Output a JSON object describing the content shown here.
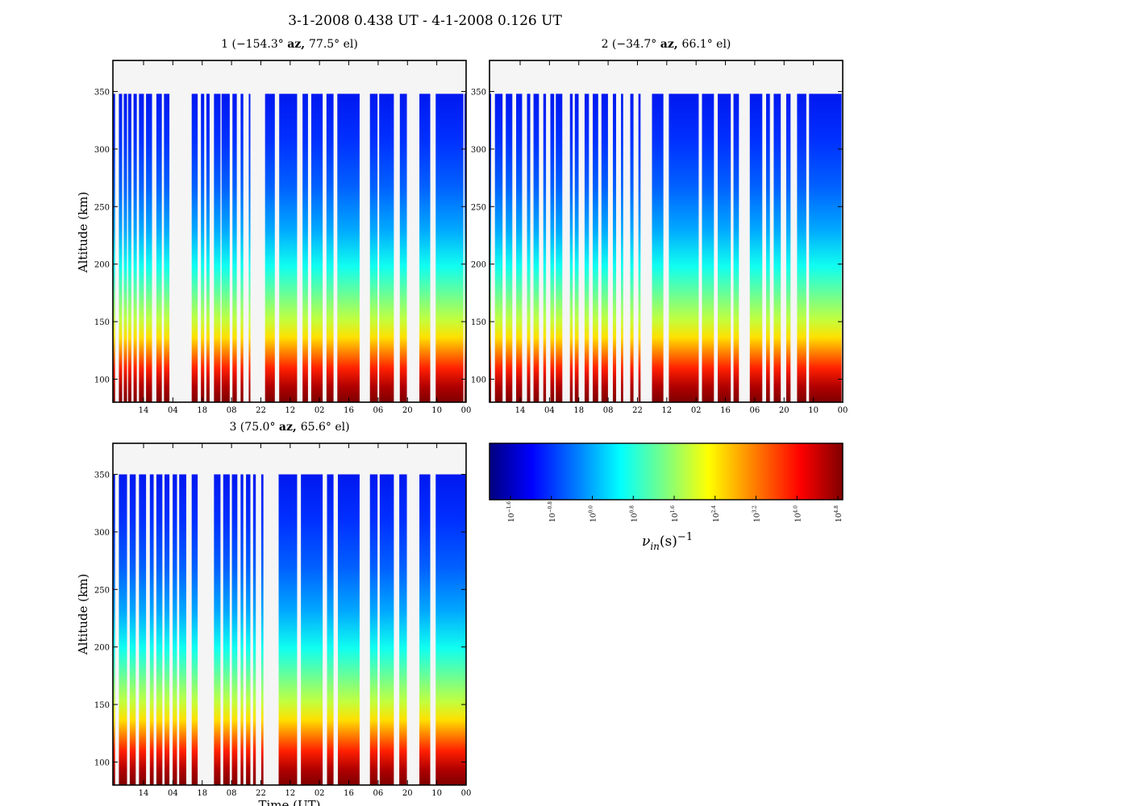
{
  "figure": {
    "suptitle": "3-1-2008 0.438 UT - 4-1-2008 0.126 UT"
  },
  "chart_data": [
    {
      "type": "heatmap",
      "title_prefix": "1 (",
      "title_az": "−154.3°",
      "title_az_unit": "az,",
      "title_el": "77.5°",
      "title_el_unit": "el)",
      "ylabel": "Altitude (km)",
      "xlabel": "",
      "ylim": [
        80,
        377
      ],
      "yticks": [
        100,
        150,
        200,
        250,
        300,
        350
      ],
      "xtick_labels": [
        "14",
        "04",
        "18",
        "08",
        "22",
        "12",
        "02",
        "16",
        "06",
        "20",
        "10",
        "00"
      ],
      "altitude_range_km": [
        80,
        348
      ],
      "data_columns": [
        [
          0.0,
          0.4
        ],
        [
          1.1,
          1.7
        ],
        [
          2.0,
          2.6
        ],
        [
          2.8,
          3.4
        ],
        [
          3.8,
          4.4
        ],
        [
          4.8,
          5.7
        ],
        [
          6.1,
          7.2
        ],
        [
          8.0,
          9.0
        ],
        [
          9.4,
          10.4
        ],
        [
          14.5,
          15.6
        ],
        [
          16.2,
          16.8
        ],
        [
          17.2,
          17.8
        ],
        [
          18.6,
          19.8
        ],
        [
          20.0,
          21.5
        ],
        [
          22.0,
          22.8
        ],
        [
          23.5,
          24.0
        ],
        [
          25.0,
          25.3
        ],
        [
          28.0,
          29.8
        ],
        [
          30.6,
          33.9
        ],
        [
          34.9,
          35.9
        ],
        [
          36.5,
          38.6
        ],
        [
          39.3,
          40.6
        ],
        [
          41.3,
          45.4
        ],
        [
          47.3,
          48.7
        ],
        [
          49.0,
          51.7
        ],
        [
          52.8,
          54.1
        ],
        [
          56.4,
          58.4
        ],
        [
          59.4,
          64.5
        ],
        [
          64.7,
          65.0
        ]
      ]
    },
    {
      "type": "heatmap",
      "title_prefix": "2 (",
      "title_az": "−34.7°",
      "title_az_unit": "az,",
      "title_el": "66.1°",
      "title_el_unit": "el)",
      "ylabel": "",
      "xlabel": "",
      "ylim": [
        80,
        377
      ],
      "yticks": [
        100,
        150,
        200,
        250,
        300,
        350
      ],
      "xtick_labels": [
        "14",
        "04",
        "18",
        "08",
        "22",
        "12",
        "02",
        "16",
        "06",
        "20",
        "10",
        "00"
      ],
      "altitude_range_km": [
        80,
        348
      ],
      "data_columns": [
        [
          0.0,
          0.3
        ],
        [
          1.0,
          2.4
        ],
        [
          3.0,
          4.2
        ],
        [
          4.9,
          6.0
        ],
        [
          6.9,
          7.5
        ],
        [
          8.1,
          9.1
        ],
        [
          9.9,
          10.4
        ],
        [
          11.2,
          11.9
        ],
        [
          12.2,
          13.4
        ],
        [
          14.8,
          15.3
        ],
        [
          15.7,
          16.4
        ],
        [
          17.5,
          18.3
        ],
        [
          19.0,
          20.0
        ],
        [
          20.6,
          21.8
        ],
        [
          22.7,
          23.3
        ],
        [
          24.2,
          24.6
        ],
        [
          25.9,
          26.5
        ],
        [
          27.4,
          27.8
        ],
        [
          29.9,
          32.0
        ],
        [
          33.0,
          38.5
        ],
        [
          39.1,
          41.3
        ],
        [
          42.0,
          44.4
        ],
        [
          44.9,
          45.9
        ],
        [
          47.9,
          50.2
        ],
        [
          50.9,
          51.6
        ],
        [
          52.3,
          53.6
        ],
        [
          54.6,
          55.4
        ],
        [
          56.6,
          58.3
        ],
        [
          58.8,
          64.8
        ]
      ]
    },
    {
      "type": "heatmap",
      "title_prefix": "3 (",
      "title_az": "75.0°",
      "title_az_unit": "az,",
      "title_el": "65.6°",
      "title_el_unit": "el)",
      "ylabel": "Altitude (km)",
      "xlabel": "Time (UT)",
      "ylim": [
        80,
        377
      ],
      "yticks": [
        100,
        150,
        200,
        250,
        300,
        350
      ],
      "xtick_labels": [
        "14",
        "04",
        "18",
        "08",
        "22",
        "12",
        "02",
        "16",
        "06",
        "20",
        "10",
        "00"
      ],
      "altitude_range_km": [
        80,
        350
      ],
      "data_columns": [
        [
          0.0,
          0.4
        ],
        [
          1.1,
          2.6
        ],
        [
          3.1,
          4.2
        ],
        [
          4.8,
          6.1
        ],
        [
          6.8,
          7.5
        ],
        [
          8.0,
          9.1
        ],
        [
          9.5,
          10.4
        ],
        [
          11.0,
          11.8
        ],
        [
          12.2,
          13.5
        ],
        [
          14.5,
          15.6
        ],
        [
          18.6,
          19.8
        ],
        [
          20.3,
          21.5
        ],
        [
          21.9,
          22.9
        ],
        [
          23.5,
          24.0
        ],
        [
          24.5,
          25.3
        ],
        [
          25.8,
          26.3
        ],
        [
          27.3,
          27.7
        ],
        [
          30.5,
          33.9
        ],
        [
          34.6,
          38.6
        ],
        [
          39.4,
          40.6
        ],
        [
          41.4,
          45.4
        ],
        [
          47.3,
          48.7
        ],
        [
          49.1,
          51.7
        ],
        [
          52.7,
          54.1
        ],
        [
          56.4,
          58.4
        ],
        [
          59.4,
          65.0
        ]
      ]
    },
    {
      "type": "colorbar",
      "label": "ν",
      "label_sub": "in",
      "label_unit": "(s)",
      "label_sup": "−1",
      "colors": [
        "#00007f",
        "#0000ff",
        "#007fff",
        "#00ffff",
        "#7fff7f",
        "#ffff00",
        "#ff7f00",
        "#ff0000",
        "#7f0000"
      ],
      "ticks": [
        {
          "base": "10",
          "exp": "−1.6"
        },
        {
          "base": "10",
          "exp": "−0.8"
        },
        {
          "base": "10",
          "exp": "0.0"
        },
        {
          "base": "10",
          "exp": "0.8"
        },
        {
          "base": "10",
          "exp": "1.6"
        },
        {
          "base": "10",
          "exp": "2.4"
        },
        {
          "base": "10",
          "exp": "3.2"
        },
        {
          "base": "10",
          "exp": "4.0"
        },
        {
          "base": "10",
          "exp": "4.8"
        }
      ]
    }
  ]
}
